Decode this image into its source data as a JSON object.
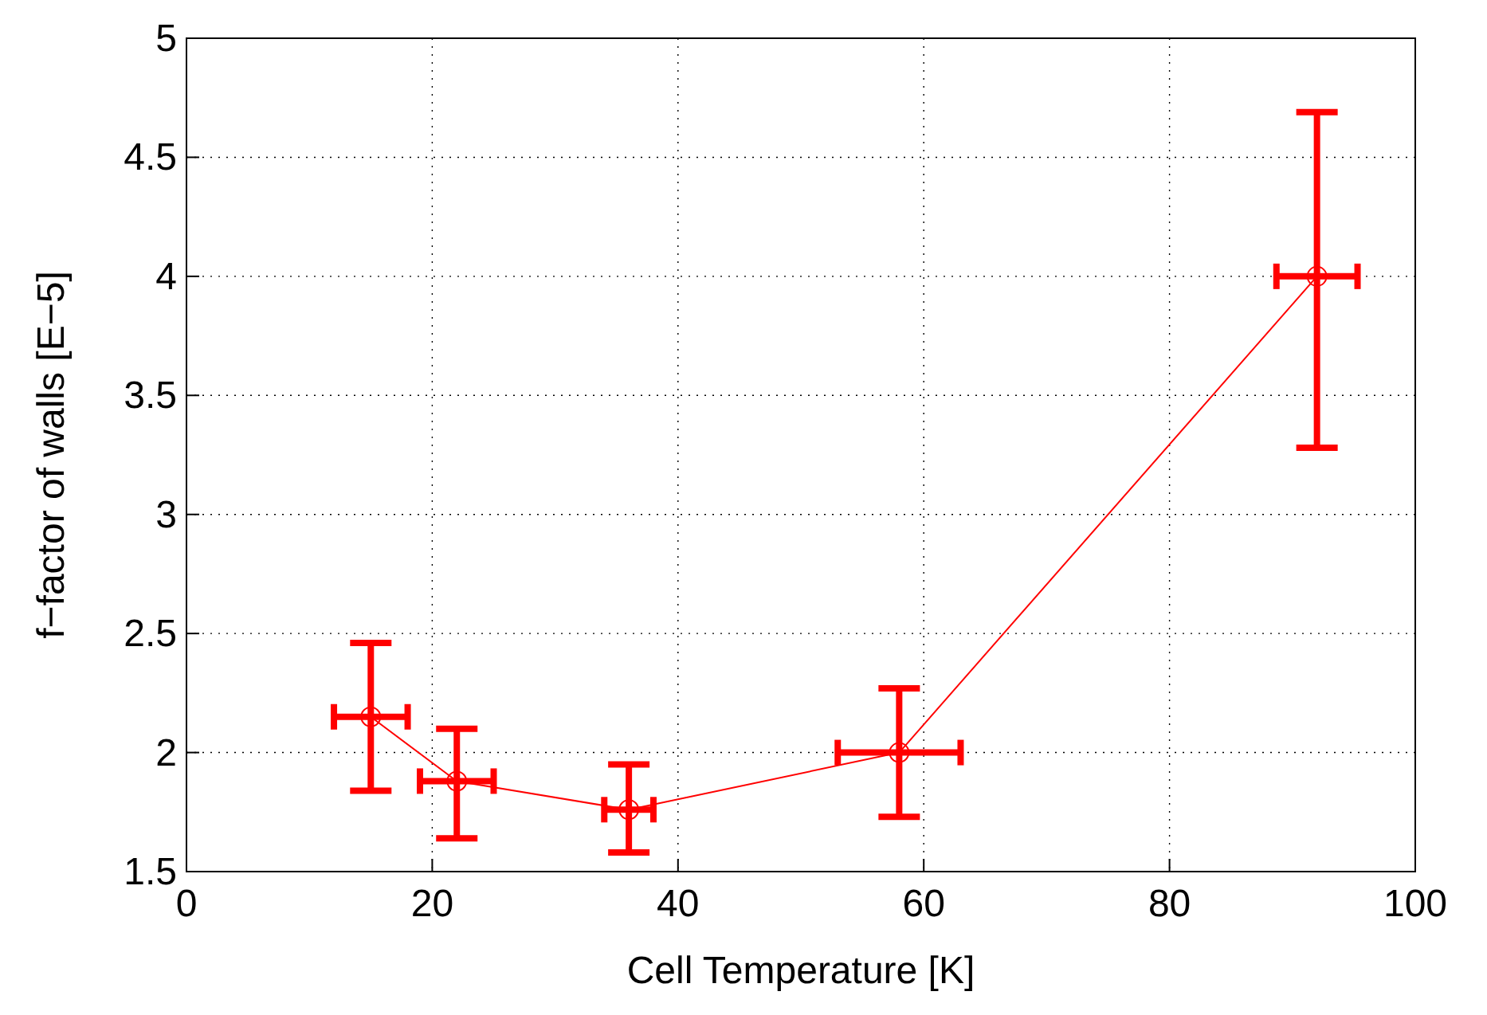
{
  "chart_data": {
    "type": "line",
    "xlabel": "Cell Temperature [K]",
    "ylabel": "f−factor of walls [E−5]",
    "x": [
      15,
      22,
      36,
      58,
      92
    ],
    "series": [
      {
        "color": "#ff0000",
        "values": [
          2.15,
          1.88,
          1.76,
          2.0,
          4.0
        ],
        "errors": [
          [
            1.84,
            2.46
          ],
          [
            1.64,
            2.1
          ],
          [
            1.58,
            1.95
          ],
          [
            1.73,
            2.27
          ],
          [
            3.28,
            4.69
          ]
        ],
        "xerrors": [
          [
            12,
            18
          ],
          [
            19,
            25
          ],
          [
            34,
            38
          ],
          [
            53,
            63
          ],
          [
            88.7,
            95.3
          ]
        ]
      }
    ],
    "xlim": [
      0,
      100
    ],
    "xticks": [
      0,
      20,
      40,
      60,
      80,
      100
    ],
    "ylim": [
      1.5,
      5
    ],
    "yticks": [
      1.5,
      2,
      2.5,
      3,
      3.5,
      4,
      4.5,
      5
    ],
    "grid": true,
    "marker": "circle",
    "line_style": "solid"
  }
}
